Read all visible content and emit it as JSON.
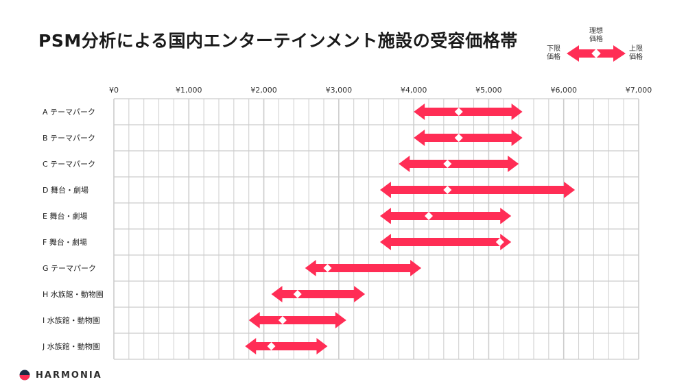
{
  "title": "PSM分析による国内エンターテインメント施設の受容価格帯",
  "legend": {
    "lower": [
      "下限",
      "価格"
    ],
    "ideal": [
      "理想",
      "価格"
    ],
    "upper": [
      "上限",
      "価格"
    ]
  },
  "brand": {
    "name": "HARMONIA"
  },
  "colors": {
    "accent": "#ff2d55",
    "grid": "#cccccc",
    "marker": "#ffffff"
  },
  "chart_data": {
    "type": "range",
    "title": "PSM分析による国内エンターテインメント施設の受容価格帯",
    "xlim": [
      0,
      7000
    ],
    "x_ticks": [
      0,
      1000,
      2000,
      3000,
      4000,
      5000,
      6000,
      7000
    ],
    "x_tick_labels": [
      "¥0",
      "¥1,000",
      "¥2,000",
      "¥3,000",
      "¥4,000",
      "¥5,000",
      "¥6,000",
      "¥7,000"
    ],
    "grid": true,
    "legend_position": "top-right",
    "categories": [
      "A テーマパーク",
      "B テーマパーク",
      "C テーマパーク",
      "D 舞台・劇場",
      "E 舞台・劇場",
      "F 舞台・劇場",
      "G テーマパーク",
      "H 水族館・動物園",
      "I 水族館・動物園",
      "J 水族館・動物園"
    ],
    "series": [
      {
        "name": "下限価格",
        "values": [
          4000,
          4000,
          3800,
          3550,
          3550,
          3550,
          2550,
          2100,
          1800,
          1750
        ]
      },
      {
        "name": "理想価格",
        "values": [
          4600,
          4600,
          4450,
          4450,
          4200,
          5150,
          2850,
          2450,
          2250,
          2100
        ]
      },
      {
        "name": "上限価格",
        "values": [
          5450,
          5450,
          5400,
          6150,
          5300,
          5300,
          4100,
          3350,
          3100,
          2850
        ]
      }
    ]
  }
}
